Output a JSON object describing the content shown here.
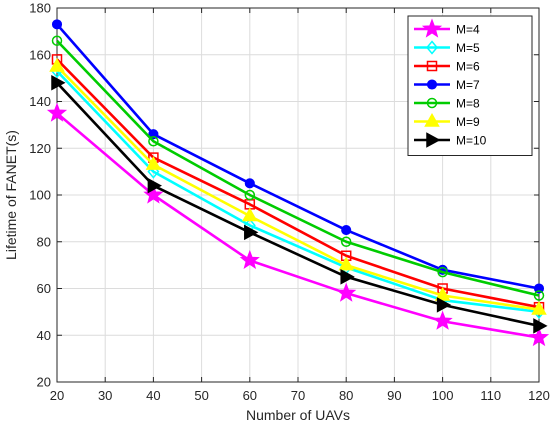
{
  "chart_data": {
    "type": "line",
    "xlabel": "Number of UAVs",
    "ylabel": "Lifetime of FANET(s)",
    "xlim": [
      20,
      120
    ],
    "ylim": [
      20,
      180
    ],
    "xticks": [
      "20",
      "30",
      "40",
      "50",
      "60",
      "70",
      "80",
      "90",
      "100",
      "110",
      "120"
    ],
    "yticks": [
      "20",
      "40",
      "60",
      "80",
      "100",
      "120",
      "140",
      "160",
      "180"
    ],
    "grid": true,
    "legend_position": "top-right",
    "x": [
      20,
      40,
      60,
      80,
      100,
      120
    ],
    "series": [
      {
        "name": "M=4",
        "color": "#ff00ff",
        "marker": "star",
        "values": [
          135,
          100,
          72,
          58,
          46,
          39
        ]
      },
      {
        "name": "M=5",
        "color": "#00ffff",
        "marker": "diamond",
        "values": [
          153,
          110,
          87,
          69,
          55,
          50
        ]
      },
      {
        "name": "M=6",
        "color": "#ff0000",
        "marker": "square",
        "values": [
          158,
          116,
          96,
          74,
          60,
          52
        ]
      },
      {
        "name": "M=7",
        "color": "#0000ff",
        "marker": "filled-circle",
        "values": [
          173,
          126,
          105,
          85,
          68,
          60
        ]
      },
      {
        "name": "M=8",
        "color": "#00cc00",
        "marker": "circle",
        "values": [
          166,
          123,
          100,
          80,
          67,
          57
        ]
      },
      {
        "name": "M=9",
        "color": "#ffff00",
        "marker": "triangle-up",
        "values": [
          155,
          113,
          91,
          70,
          57,
          51
        ]
      },
      {
        "name": "M=10",
        "color": "#000000",
        "marker": "triangle-right",
        "values": [
          148,
          104,
          84,
          65,
          53,
          44
        ]
      }
    ]
  }
}
